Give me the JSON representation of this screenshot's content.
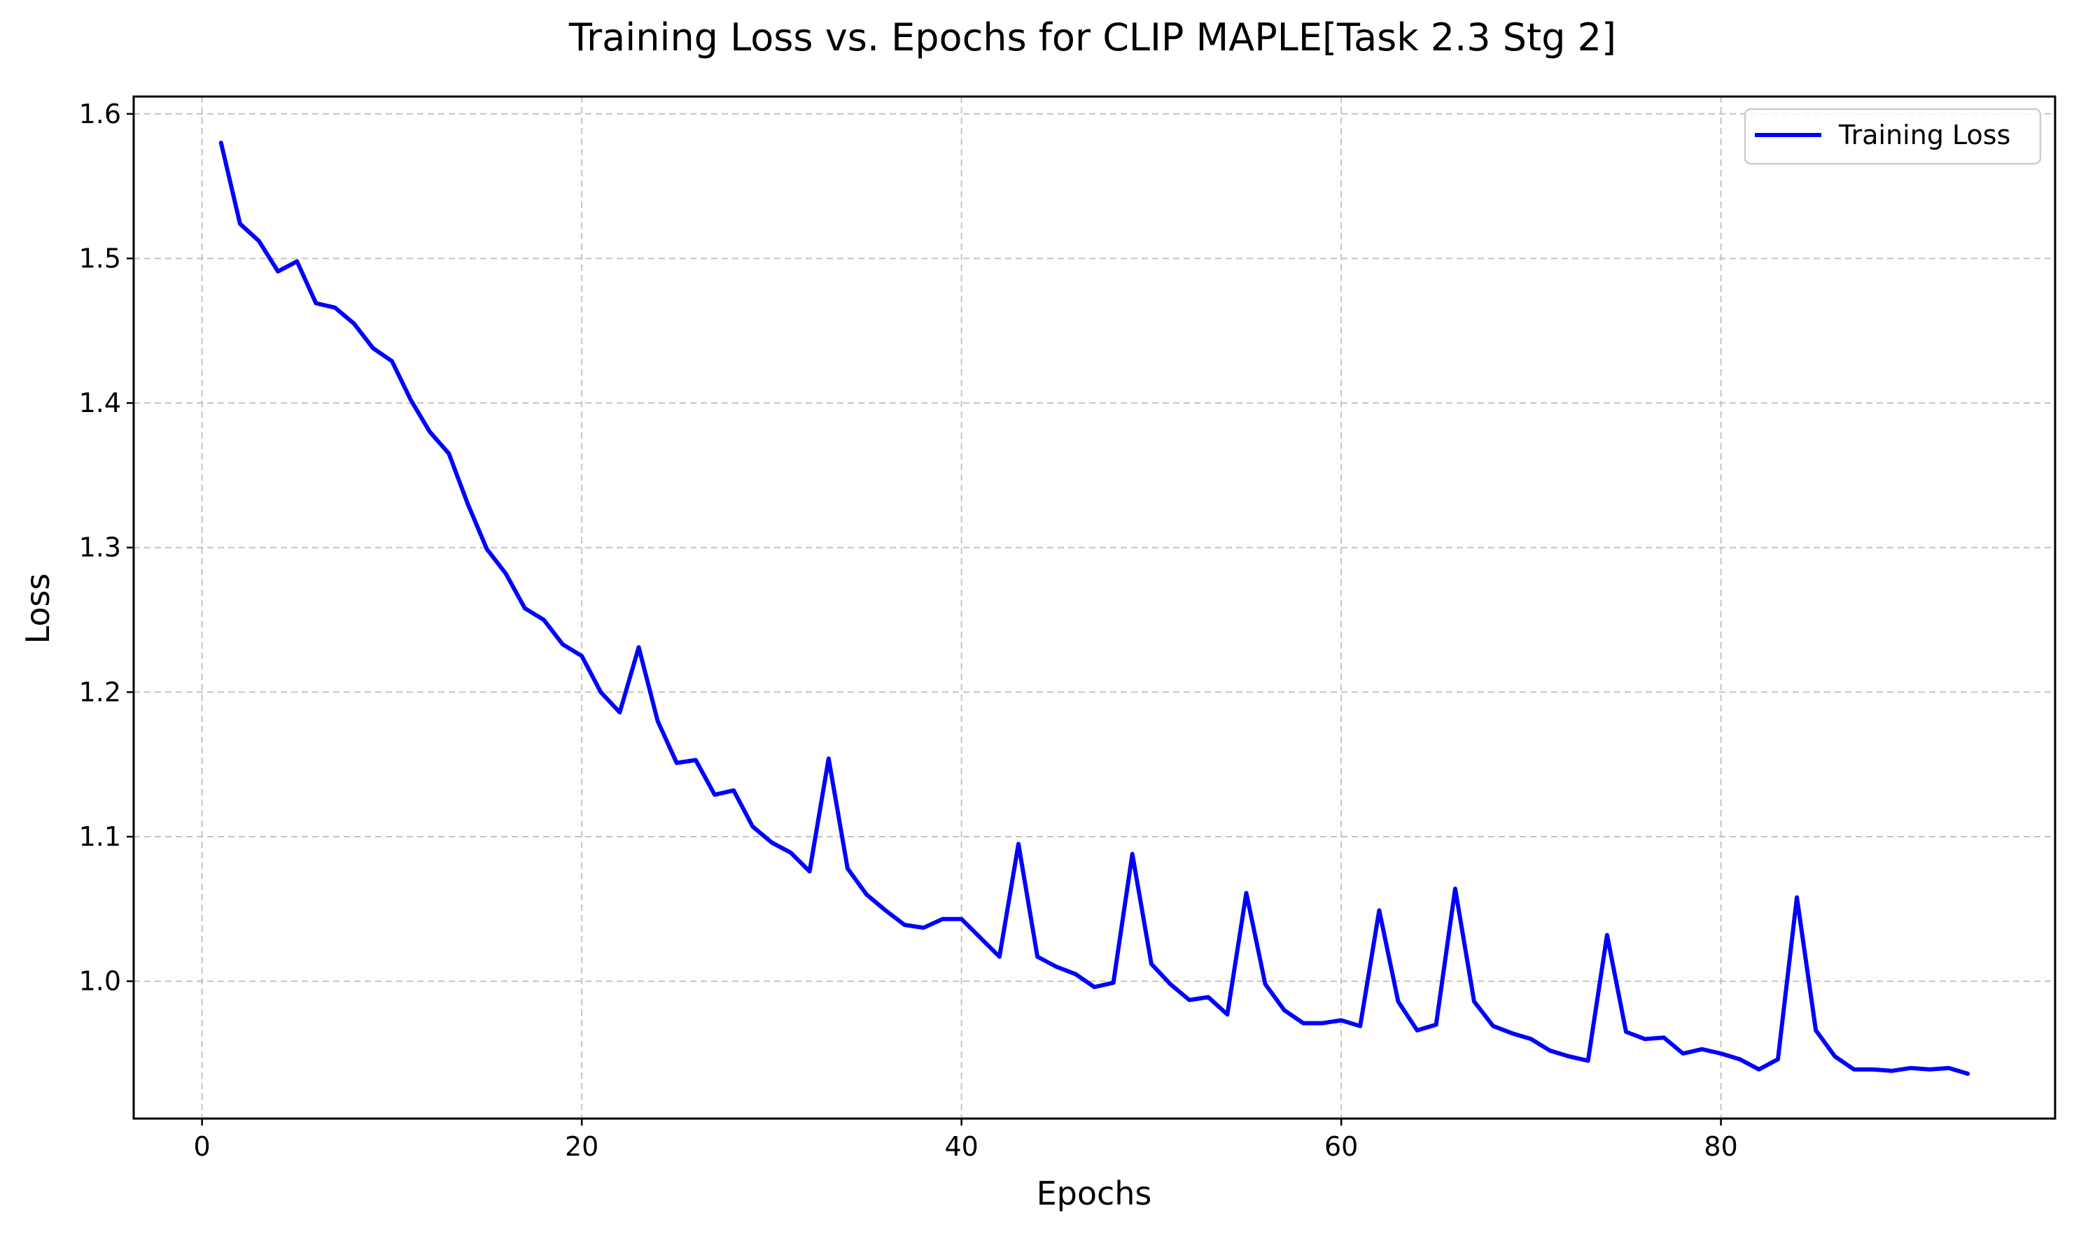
{
  "chart_data": {
    "type": "line",
    "title": "Training Loss vs. Epochs for CLIP MAPLE[Task 2.3 Stg 2]",
    "xlabel": "Epochs",
    "ylabel": "Loss",
    "xlim": [
      -3.6,
      97.6
    ],
    "ylim": [
      0.905,
      1.612
    ],
    "xticks": [
      0,
      20,
      40,
      60,
      80
    ],
    "yticks": [
      1.0,
      1.1,
      1.2,
      1.3,
      1.4,
      1.5,
      1.6
    ],
    "xtick_labels": [
      "0",
      "20",
      "40",
      "60",
      "80"
    ],
    "ytick_labels": [
      "1.0",
      "1.1",
      "1.2",
      "1.3",
      "1.4",
      "1.5",
      "1.6"
    ],
    "grid": true,
    "legend_position": "top-right",
    "series": [
      {
        "name": "Training Loss",
        "color": "#0000ff",
        "x": [
          1,
          2,
          3,
          4,
          5,
          6,
          7,
          8,
          9,
          10,
          11,
          12,
          13,
          14,
          15,
          16,
          17,
          18,
          19,
          20,
          21,
          22,
          23,
          24,
          25,
          26,
          27,
          28,
          29,
          30,
          31,
          32,
          33,
          34,
          35,
          36,
          37,
          38,
          39,
          40,
          41,
          42,
          43,
          44,
          45,
          46,
          47,
          48,
          49,
          50,
          51,
          52,
          53,
          54,
          55,
          56,
          57,
          58,
          59,
          60,
          61,
          62,
          63,
          64,
          65,
          66,
          67,
          68,
          69,
          70,
          71,
          72,
          73,
          74,
          75,
          76,
          77,
          78,
          79,
          80,
          81,
          82,
          83,
          84,
          85,
          86,
          87,
          88,
          89,
          90,
          91,
          92,
          93
        ],
        "y": [
          1.58,
          1.524,
          1.512,
          1.491,
          1.498,
          1.469,
          1.466,
          1.455,
          1.438,
          1.429,
          1.402,
          1.38,
          1.365,
          1.33,
          1.299,
          1.282,
          1.258,
          1.25,
          1.233,
          1.225,
          1.2,
          1.186,
          1.231,
          1.18,
          1.151,
          1.153,
          1.129,
          1.132,
          1.107,
          1.096,
          1.089,
          1.076,
          1.154,
          1.078,
          1.06,
          1.049,
          1.039,
          1.037,
          1.043,
          1.043,
          1.03,
          1.017,
          1.095,
          1.017,
          1.01,
          1.005,
          0.996,
          0.999,
          1.088,
          1.012,
          0.998,
          0.987,
          0.989,
          0.977,
          1.061,
          0.998,
          0.98,
          0.971,
          0.971,
          0.973,
          0.969,
          1.049,
          0.986,
          0.966,
          0.97,
          1.064,
          0.986,
          0.969,
          0.964,
          0.96,
          0.952,
          0.948,
          0.945,
          1.032,
          0.965,
          0.96,
          0.961,
          0.95,
          0.953,
          0.95,
          0.946,
          0.939,
          0.946,
          1.058,
          0.966,
          0.948,
          0.939,
          0.939,
          0.938,
          0.94,
          0.939,
          0.94,
          0.936
        ]
      }
    ]
  }
}
